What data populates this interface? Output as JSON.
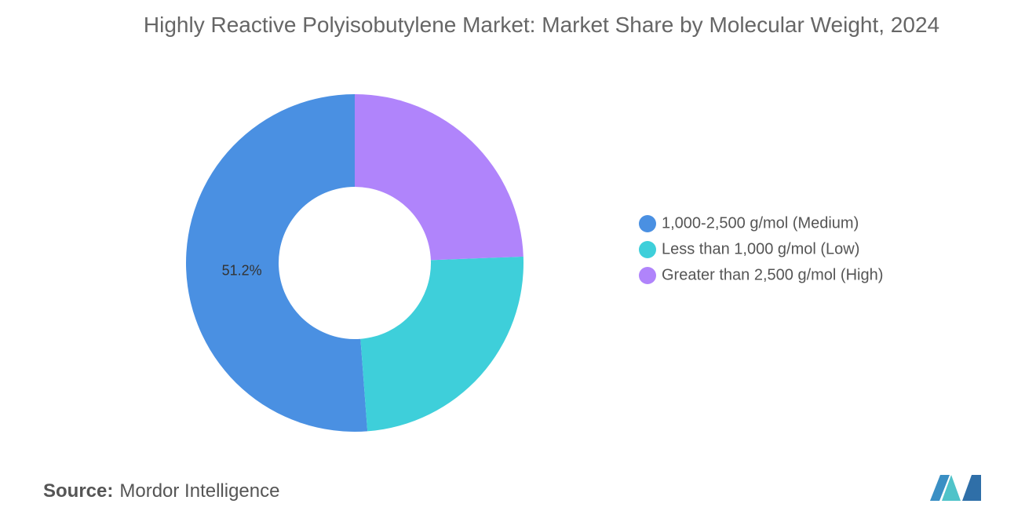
{
  "chart_data": {
    "type": "donut",
    "title": "Highly Reactive Polyisobutylene Market: Market Share by Molecular Weight, 2024",
    "categories": [
      "1,000-2,500 g/mol (Medium)",
      "Less than 1,000 g/mol (Low)",
      "Greater than 2,500 g/mol (High)"
    ],
    "values": [
      51.2,
      24.4,
      24.4
    ],
    "value_labels": [
      "51.2%",
      null,
      null
    ],
    "colors": [
      "#4a90e2",
      "#3ecfda",
      "#b084fb"
    ],
    "legend": "right"
  },
  "source": {
    "label": "Source:",
    "text": "Mordor Intelligence"
  }
}
